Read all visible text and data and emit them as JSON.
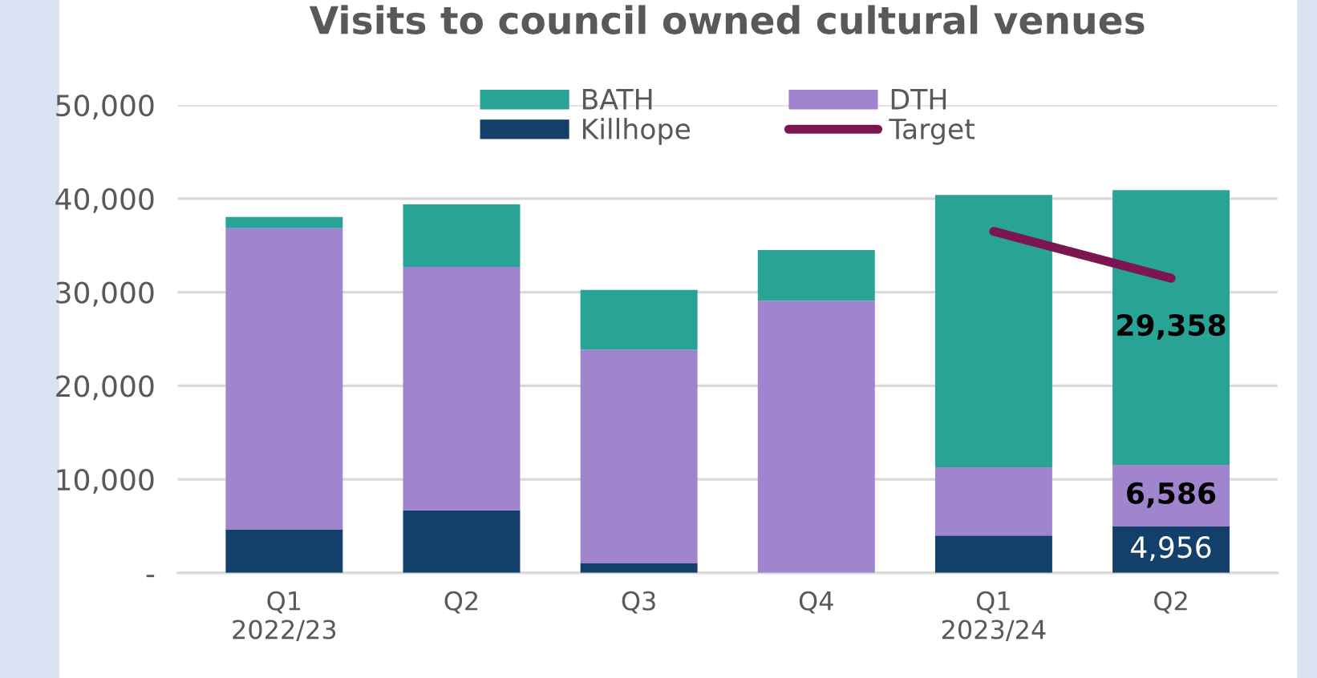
{
  "chart_data": {
    "type": "bar",
    "stacked": true,
    "title": "Visits to council owned cultural venues",
    "categories": [
      "Q1\n2022/23",
      "Q2",
      "Q3",
      "Q4",
      "Q1\n2023/24",
      "Q2"
    ],
    "series": [
      {
        "name": "Killhope",
        "color": "#12406a",
        "values": [
          4650,
          6700,
          1050,
          0,
          4000,
          4956
        ],
        "value_labels": [
          null,
          null,
          null,
          null,
          null,
          "4,956"
        ]
      },
      {
        "name": "DTH",
        "color": "#a084ce",
        "values": [
          32200,
          26000,
          22800,
          29100,
          7300,
          6586
        ],
        "value_labels": [
          null,
          null,
          null,
          null,
          null,
          "6,586"
        ]
      },
      {
        "name": "BATH",
        "color": "#29a396",
        "values": [
          1200,
          6700,
          6400,
          5400,
          29100,
          29358
        ],
        "value_labels": [
          null,
          null,
          null,
          null,
          null,
          "29,358"
        ]
      },
      {
        "name": "Target",
        "type": "line",
        "color": "#7b1650",
        "values": [
          null,
          null,
          null,
          null,
          36500,
          31500
        ]
      }
    ],
    "ylim": [
      0,
      50000
    ],
    "yticks": [
      {
        "value": 0,
        "label": "-"
      },
      {
        "value": 10000,
        "label": "10,000"
      },
      {
        "value": 20000,
        "label": "20,000"
      },
      {
        "value": 30000,
        "label": "30,000"
      },
      {
        "value": 40000,
        "label": "40,000"
      },
      {
        "value": 50000,
        "label": "50,000"
      }
    ],
    "grid": "y",
    "legend": "top"
  }
}
